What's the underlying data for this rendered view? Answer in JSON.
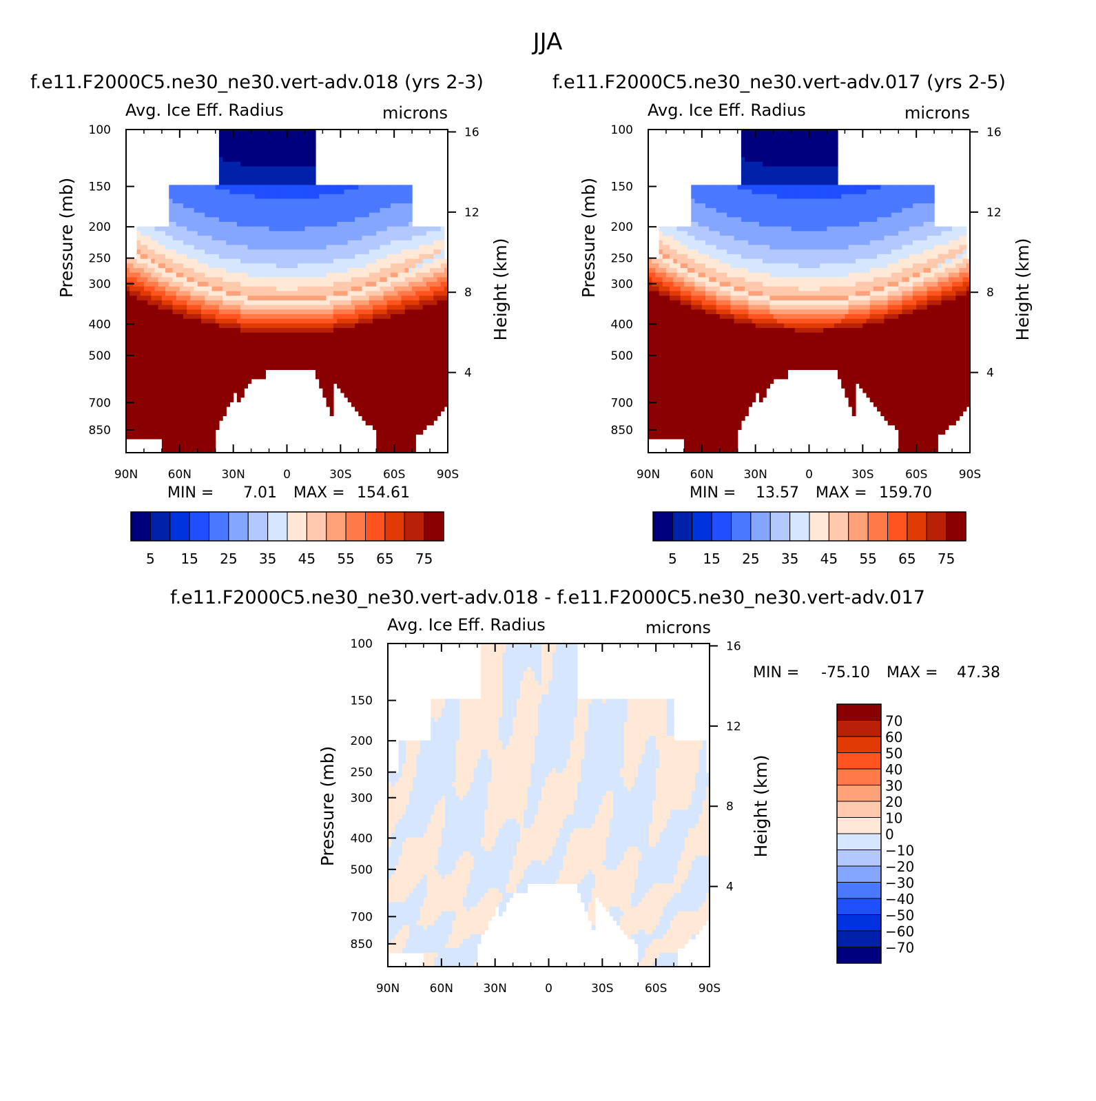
{
  "page_title": "JJA",
  "colors": {
    "abs_scale": [
      "#00007f",
      "#0022aa",
      "#0033dd",
      "#1f4fff",
      "#4a78ff",
      "#85a6ff",
      "#b3c8ff",
      "#d6e6ff",
      "#ffe8d6",
      "#ffc9ad",
      "#ffa27a",
      "#ff7a48",
      "#ff5420",
      "#e03a05",
      "#b82108",
      "#8a0000"
    ],
    "diff_scale": [
      "#00007f",
      "#0022aa",
      "#0033dd",
      "#1f4fff",
      "#4a78ff",
      "#85a6ff",
      "#b3c8ff",
      "#d6e6ff",
      "#ffe8d6",
      "#ffc9ad",
      "#ffa27a",
      "#ff7a48",
      "#ff5420",
      "#e03a05",
      "#b82108",
      "#8a0000"
    ]
  },
  "chart_data": [
    {
      "type": "heatmap",
      "title": "f.e11.F2000C5.ne30_ne30.vert-adv.018 (yrs 2-3)",
      "left_label": "Avg. Ice Eff. Radius",
      "right_label": "microns",
      "ylabel": "Pressure (mb)",
      "ylabel_right": "Height (km)",
      "x_ticks": [
        "90N",
        "60N",
        "30N",
        "0",
        "30S",
        "60S",
        "90S"
      ],
      "y_ticks": [
        "100",
        "150",
        "200",
        "250",
        "300",
        "400",
        "500",
        "700",
        "850"
      ],
      "y_right_ticks": [
        "16",
        "12",
        "8",
        "4"
      ],
      "min_label": "MIN =",
      "min_value": "7.01",
      "max_label": "MAX =",
      "max_value": "154.61",
      "colorbar_labels": [
        "5",
        "15",
        "25",
        "35",
        "45",
        "55",
        "65",
        "75"
      ]
    },
    {
      "type": "heatmap",
      "title": "f.e11.F2000C5.ne30_ne30.vert-adv.017 (yrs 2-5)",
      "left_label": "Avg. Ice Eff. Radius",
      "right_label": "microns",
      "ylabel": "Pressure (mb)",
      "ylabel_right": "Height (km)",
      "x_ticks": [
        "90N",
        "60N",
        "30N",
        "0",
        "30S",
        "60S",
        "90S"
      ],
      "y_ticks": [
        "100",
        "150",
        "200",
        "250",
        "300",
        "400",
        "500",
        "700",
        "850"
      ],
      "y_right_ticks": [
        "16",
        "12",
        "8",
        "4"
      ],
      "min_label": "MIN =",
      "min_value": "13.57",
      "max_label": "MAX =",
      "max_value": "159.70",
      "colorbar_labels": [
        "5",
        "15",
        "25",
        "35",
        "45",
        "55",
        "65",
        "75"
      ]
    },
    {
      "type": "heatmap",
      "title": "f.e11.F2000C5.ne30_ne30.vert-adv.018 - f.e11.F2000C5.ne30_ne30.vert-adv.017",
      "left_label": "Avg. Ice Eff. Radius",
      "right_label": "microns",
      "ylabel": "Pressure (mb)",
      "ylabel_right": "Height (km)",
      "x_ticks": [
        "90N",
        "60N",
        "30N",
        "0",
        "30S",
        "60S",
        "90S"
      ],
      "y_ticks": [
        "100",
        "150",
        "200",
        "250",
        "300",
        "400",
        "500",
        "700",
        "850"
      ],
      "y_right_ticks": [
        "16",
        "12",
        "8",
        "4"
      ],
      "min_label": "MIN =",
      "min_value": "-75.10",
      "max_label": "MAX =",
      "max_value": "47.38",
      "colorbar_labels": [
        "70",
        "60",
        "50",
        "40",
        "30",
        "20",
        "10",
        "0",
        "-10",
        "-20",
        "-30",
        "-40",
        "-50",
        "-60",
        "-70"
      ]
    }
  ]
}
